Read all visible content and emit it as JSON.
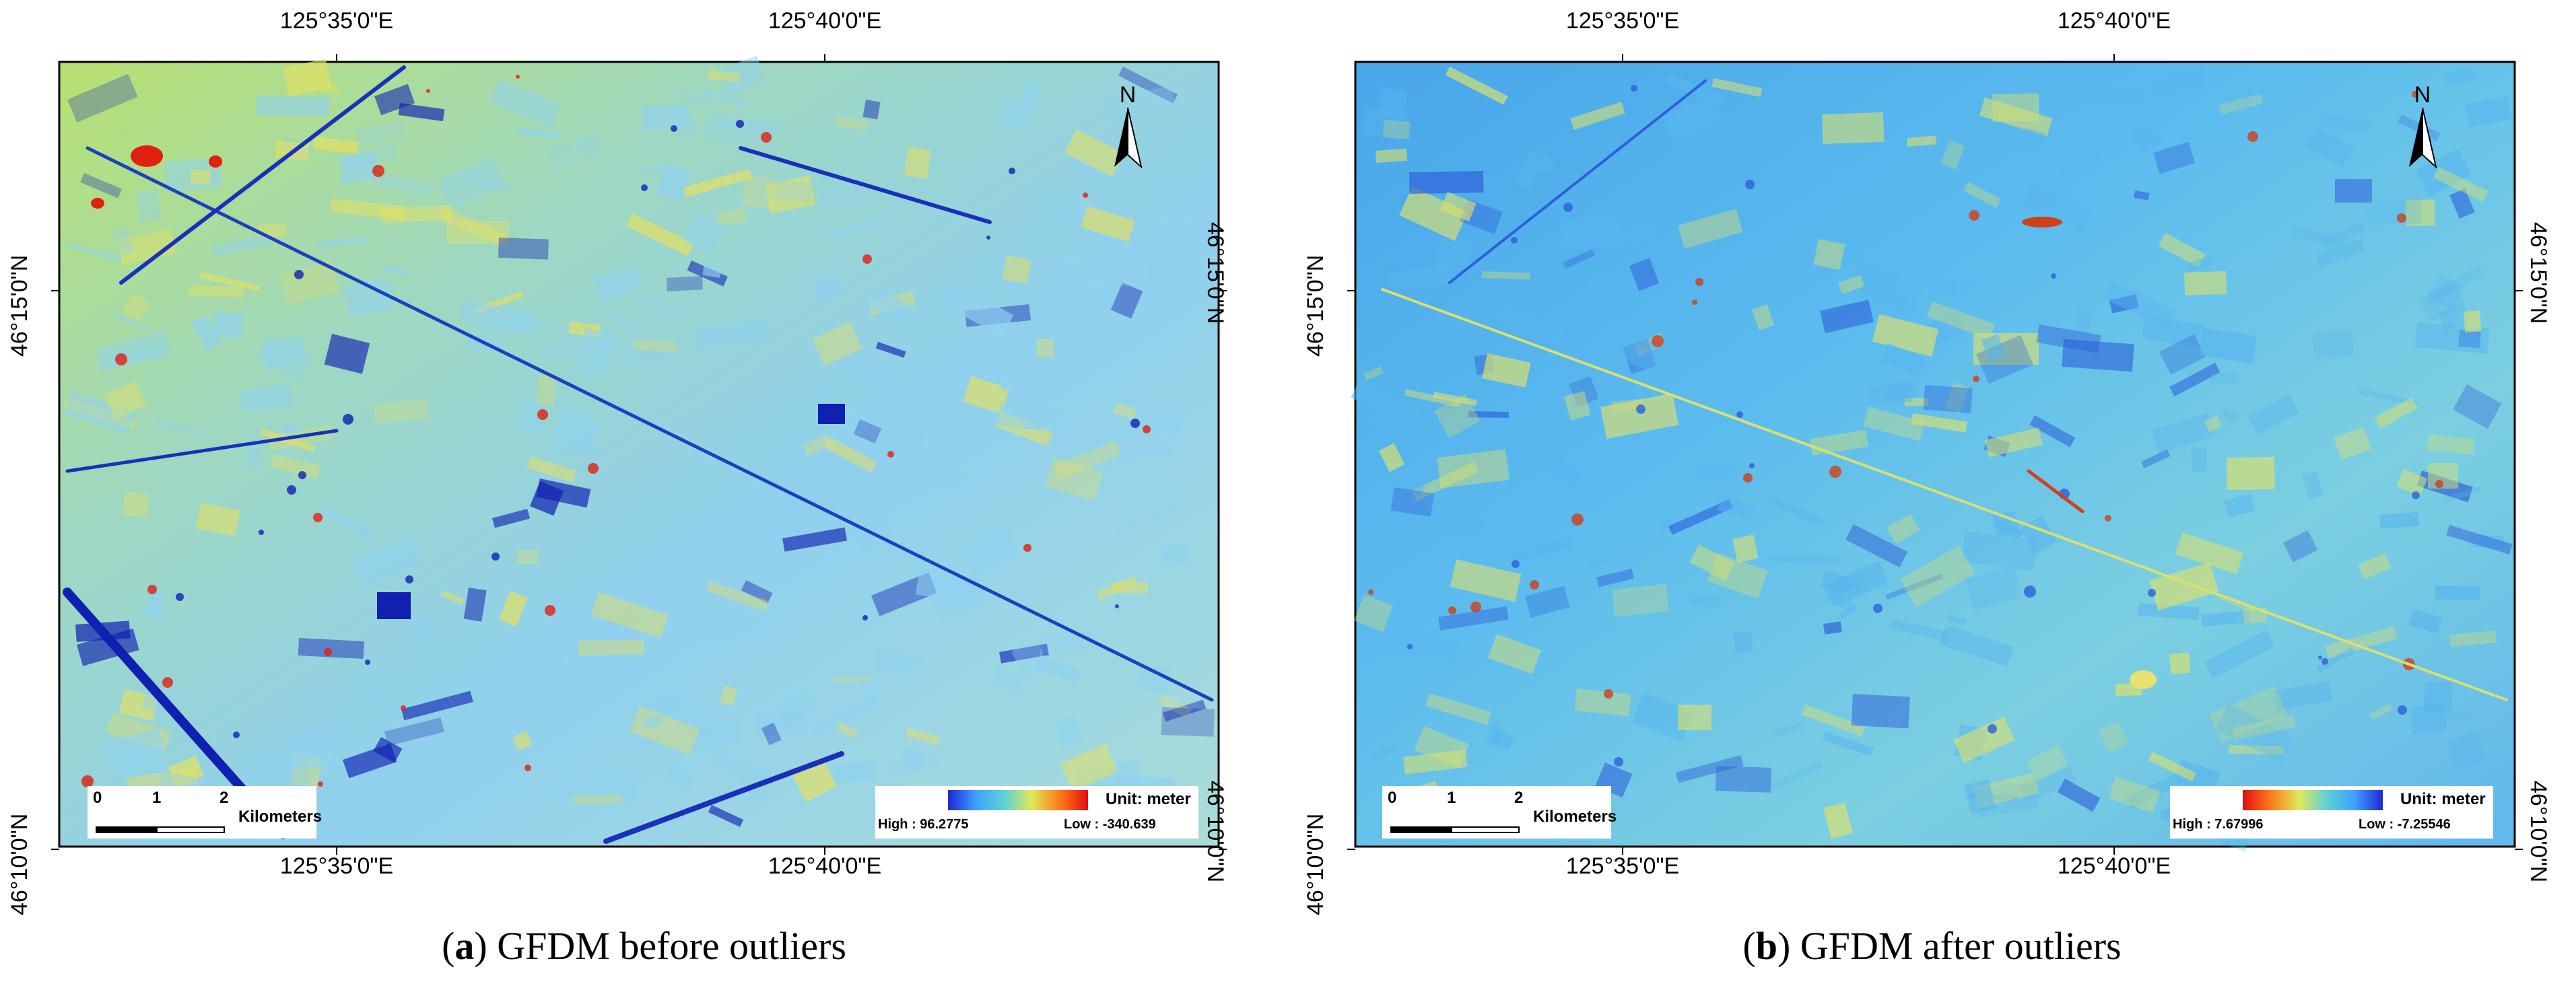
{
  "panels": [
    {
      "letter": "a",
      "caption": "GFDM before outliers",
      "coords": {
        "top": [
          "125°35'0\"E",
          "125°40'0\"E"
        ],
        "bottom": [
          "125°35'0\"E",
          "125°40'0\"E"
        ],
        "left": [
          "46°15'0\"N",
          "46°10'0\"N"
        ],
        "right": [
          "46°15'0\"N",
          "46°10'0\"N"
        ]
      },
      "north": "N",
      "scale": {
        "ticks": [
          "0",
          "1",
          "2"
        ],
        "unit": "Kilometers"
      },
      "legend": {
        "unit": "Unit: meter",
        "high": "High : 96.2775",
        "low": "Low : -340.639"
      },
      "ramp": [
        "#1e28d2",
        "#3fa0ff",
        "#5fd0d8",
        "#dfe85a",
        "#ff7a1a",
        "#e01010"
      ],
      "palette": {
        "base": "#8fd2f0",
        "dark": "#1020b0",
        "hot": "#e02010",
        "warm": "#e6e060"
      }
    },
    {
      "letter": "b",
      "caption": "GFDM after outliers",
      "coords": {
        "top": [
          "125°35'0\"E",
          "125°40'0\"E"
        ],
        "bottom": [
          "125°35'0\"E",
          "125°40'0\"E"
        ],
        "left": [
          "46°15'0\"N",
          "46°10'0\"N"
        ],
        "right": [
          "46°15'0\"N",
          "46°10'0\"N"
        ]
      },
      "north": "N",
      "scale": {
        "ticks": [
          "0",
          "1",
          "2"
        ],
        "unit": "Kilometers"
      },
      "legend": {
        "unit": "Unit: meter",
        "high": "High : 7.67996",
        "low": "Low : -7.25546"
      },
      "ramp": [
        "#e01010",
        "#ff7a1a",
        "#dfe85a",
        "#5fd0d8",
        "#3fa0ff",
        "#1e28d2"
      ],
      "palette": {
        "base": "#58b6ee",
        "dark": "#2d60d8",
        "hot": "#d04018",
        "warm": "#d8e070"
      }
    }
  ]
}
